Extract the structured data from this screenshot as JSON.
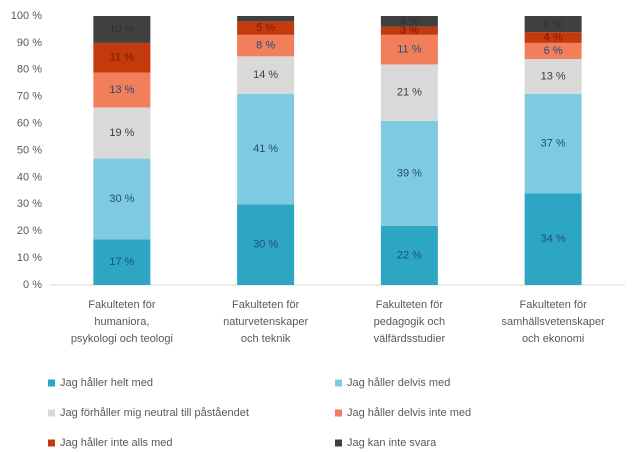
{
  "chart_data": {
    "type": "bar",
    "stacked": true,
    "categories": [
      [
        "Fakulteten för",
        "humaniora,",
        "psykologi och teologi"
      ],
      [
        "Fakulteten för",
        "naturvetenskaper",
        "och teknik"
      ],
      [
        "Fakulteten för",
        "pedagogik och",
        "välfärdsstudier"
      ],
      [
        "Fakulteten för",
        "samhällsvetenskaper",
        "och ekonomi"
      ]
    ],
    "series": [
      {
        "name": "Jag håller helt med",
        "color": "#2ca6c2",
        "values": [
          17,
          30,
          22,
          34
        ],
        "value_labels": [
          "17 %",
          "30 %",
          "22 %",
          "34 %"
        ]
      },
      {
        "name": "Jag håller delvis med",
        "color": "#7ecbe1",
        "values": [
          30,
          41,
          39,
          37
        ],
        "value_labels": [
          "30 %",
          "41 %",
          "39 %",
          "37 %"
        ]
      },
      {
        "name": "Jag förhåller mig neutral till påståendet",
        "color": "#d9d9d9",
        "values": [
          19,
          14,
          21,
          13
        ],
        "value_labels": [
          "19 %",
          "14 %",
          "21 %",
          "13 %"
        ]
      },
      {
        "name": "Jag håller delvis inte med",
        "color": "#f27f5b",
        "values": [
          13,
          8,
          11,
          6
        ],
        "value_labels": [
          "13 %",
          "8 %",
          "11 %",
          "6 %"
        ]
      },
      {
        "name": "Jag håller inte alls med",
        "color": "#c33a0c",
        "values": [
          11,
          5,
          3,
          4
        ],
        "value_labels": [
          "11 %",
          "5 %",
          "3 %",
          "4 %"
        ]
      },
      {
        "name": "Jag kan inte svara",
        "color": "#404040",
        "values": [
          10,
          2,
          4,
          6
        ],
        "value_labels": [
          "10 %",
          null,
          "4 %",
          "6 %"
        ]
      }
    ],
    "ylim": [
      0,
      100
    ],
    "yticks": [
      {
        "value": 0,
        "label": "0 %"
      },
      {
        "value": 10,
        "label": "10 %"
      },
      {
        "value": 20,
        "label": "20 %"
      },
      {
        "value": 30,
        "label": "30 %"
      },
      {
        "value": 40,
        "label": "40 %"
      },
      {
        "value": 50,
        "label": "50 %"
      },
      {
        "value": 60,
        "label": "60 %"
      },
      {
        "value": 70,
        "label": "70 %"
      },
      {
        "value": 80,
        "label": "80 %"
      },
      {
        "value": 90,
        "label": "90 %"
      },
      {
        "value": 100,
        "label": "100 %"
      }
    ],
    "grid": false,
    "legend": "bottom"
  }
}
